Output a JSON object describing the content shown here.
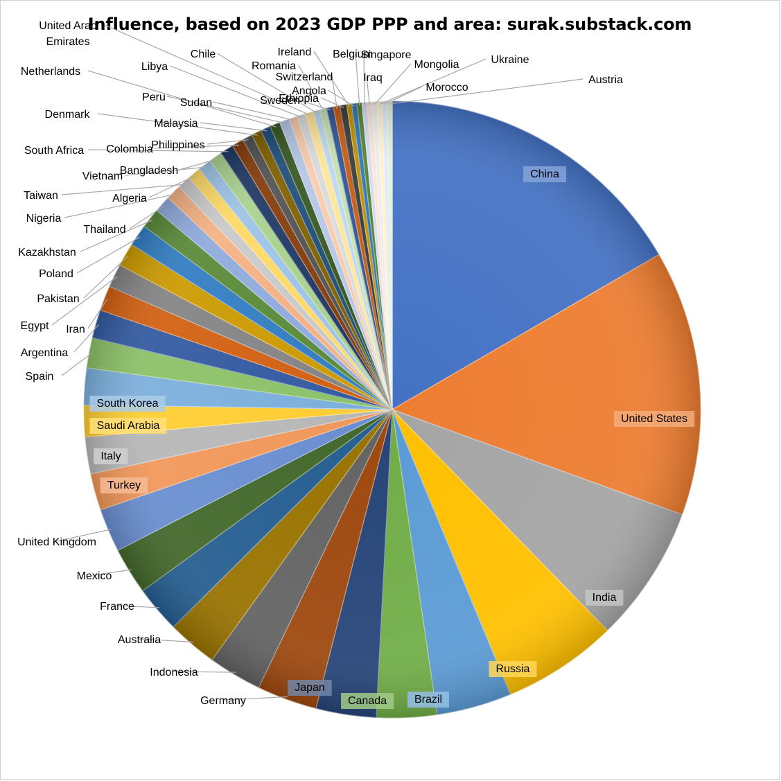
{
  "chart_data": {
    "type": "pie",
    "title": "Influence, based on 2023 GDP PPP and area: surak.substack.com",
    "categories": [
      "China",
      "United States",
      "India",
      "Russia",
      "Brazil",
      "Canada",
      "Japan",
      "Germany",
      "Indonesia",
      "Australia",
      "France",
      "Mexico",
      "United Kingdom",
      "Turkey",
      "Italy",
      "Saudi Arabia",
      "South Korea",
      "Spain",
      "Argentina",
      "Iran",
      "Egypt",
      "Pakistan",
      "Poland",
      "Kazakhstan",
      "Thailand",
      "Nigeria",
      "Taiwan",
      "Algeria",
      "Vietnam",
      "Bangladesh",
      "South Africa",
      "Colombia",
      "Philippines",
      "Denmark",
      "Malaysia",
      "Netherlands",
      "Peru",
      "Sudan",
      "Libya",
      "United Arab Emirates",
      "Chile",
      "Romania",
      "Sweden",
      "Switzerland",
      "Ethiopia",
      "Ireland",
      "Angola",
      "Belgium",
      "Singapore",
      "Iraq",
      "Mongolia",
      "Ukraine",
      "Morocco",
      "Austria"
    ],
    "values": [
      19.0,
      15.9,
      8.2,
      6.9,
      4.5,
      3.6,
      3.6,
      3.6,
      3.2,
      3.0,
      2.8,
      2.8,
      2.6,
      2.2,
      2.2,
      1.9,
      2.2,
      1.8,
      1.7,
      1.5,
      1.4,
      1.4,
      1.3,
      1.2,
      1.0,
      0.9,
      0.8,
      0.8,
      0.8,
      0.8,
      0.8,
      0.7,
      0.6,
      0.6,
      0.6,
      0.6,
      0.6,
      0.5,
      0.5,
      0.5,
      0.4,
      0.4,
      0.4,
      0.4,
      0.4,
      0.3,
      0.3,
      0.3,
      0.3,
      0.3,
      0.3,
      0.3,
      0.3,
      0.3
    ],
    "legend": "none",
    "data_labels": "category name"
  },
  "palette": [
    "#4472c4",
    "#ed7d31",
    "#a5a5a5",
    "#ffc000",
    "#5b9bd5",
    "#70ad47",
    "#264478",
    "#9e480e",
    "#636363",
    "#997300",
    "#255e91",
    "#43682b",
    "#698ed0",
    "#f1975a",
    "#b7b7b7",
    "#ffcd33",
    "#7cafdd",
    "#8cc168",
    "#335aa1",
    "#d26012",
    "#848484",
    "#cc9a00",
    "#327dc2",
    "#5a8a39",
    "#8faadc",
    "#f4b183",
    "#c9c9c9",
    "#ffd966",
    "#9dc3e6",
    "#a9d18e",
    "#203864",
    "#843c0c",
    "#525252",
    "#7f6000",
    "#1f4e79",
    "#385723",
    "#b4c7e7",
    "#f8cbad",
    "#dbdbdb",
    "#ffe699",
    "#bdd7ee",
    "#c5e0b4",
    "#2f5597",
    "#c55a11",
    "#3b3b3b",
    "#bf9000",
    "#2e75b6",
    "#548235",
    "#d6dcf0",
    "#fbe5d6",
    "#ededed",
    "#fff2cc",
    "#deebf7",
    "#e2f0d9"
  ]
}
